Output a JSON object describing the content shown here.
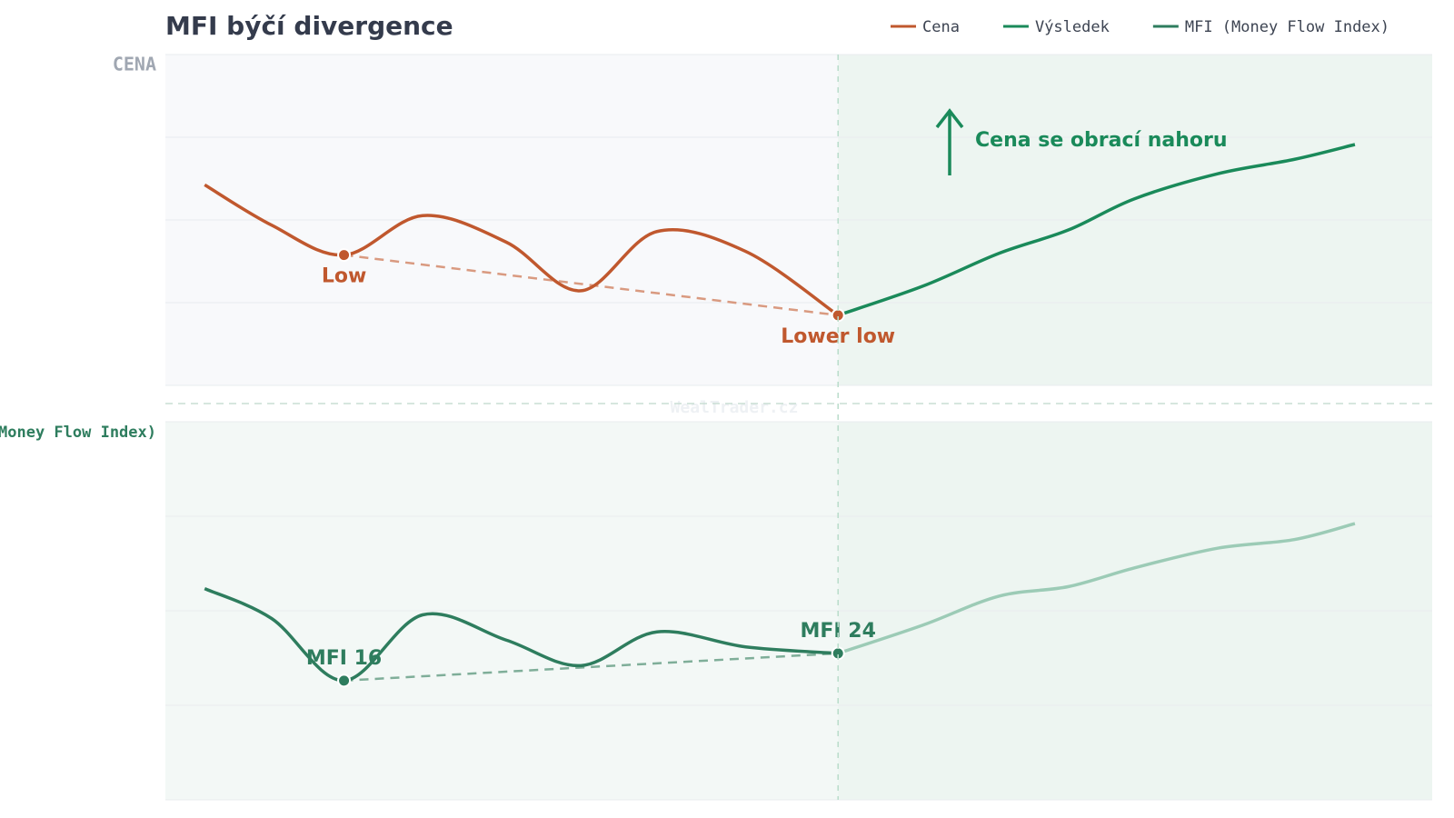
{
  "title": "MFI býčí divergence",
  "watermark": "WealTrader.cz",
  "chart_data": [
    {
      "type": "line",
      "panel_label": "CENA",
      "xlim": [
        0,
        100
      ],
      "ylim": [
        0,
        100
      ],
      "grid": true,
      "trend_color": "#d99a80",
      "x": [
        3.1,
        8.4,
        14.1,
        20.3,
        26.9,
        32.8,
        38.8,
        45.8,
        53.1,
        59.8,
        65.8,
        71.3,
        76.5,
        83.1,
        89.1,
        93.9
      ],
      "series": [
        {
          "name": "Cena",
          "color": "#c0582e",
          "values": [
            60.6,
            48.4,
            39.4,
            51.3,
            43.3,
            28.6,
            46.5,
            40.5,
            21.2,
            null,
            null,
            null,
            null,
            null,
            null,
            null
          ]
        },
        {
          "name": "Výsledek",
          "color": "#1a8a5a",
          "values": [
            null,
            null,
            null,
            null,
            null,
            null,
            null,
            null,
            21.2,
            30.0,
            39.9,
            47.0,
            56.4,
            64.0,
            68.3,
            72.8
          ]
        }
      ],
      "annotations": [
        "Low",
        "Lower low",
        "Cena se obrací nahoru"
      ]
    },
    {
      "type": "line",
      "panel_label": "MFI (Money Flow Index)",
      "xlim": [
        0,
        100
      ],
      "ylim": [
        -19,
        92
      ],
      "grid": true,
      "trend_color": "#7fae99",
      "x": [
        3.1,
        8.4,
        14.1,
        20.3,
        26.9,
        32.8,
        38.8,
        45.8,
        53.1,
        59.8,
        65.8,
        71.3,
        76.5,
        83.1,
        89.1,
        93.9
      ],
      "series": [
        {
          "name": "MFI (Money Flow Index)",
          "color": "#2e7d5e",
          "after_color": "#9ccbb6",
          "values": [
            43.0,
            34.2,
            16,
            35.3,
            27.9,
            20.4,
            30.3,
            25.9,
            24,
            32.3,
            40.8,
            43.6,
            49.1,
            54.9,
            57.4,
            62.1
          ]
        }
      ],
      "annotations": [
        "MFI 16",
        "MFI 24"
      ]
    }
  ]
}
